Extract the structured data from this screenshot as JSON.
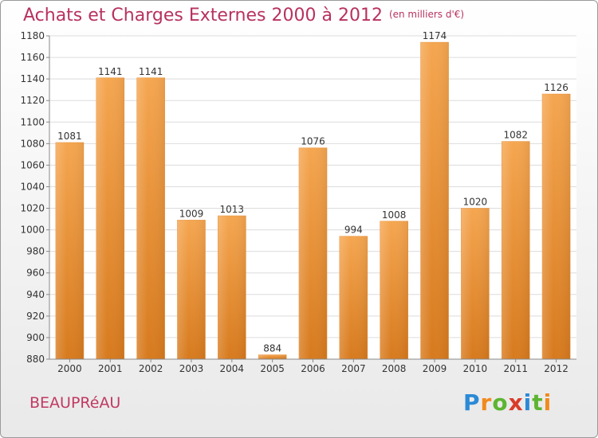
{
  "header": {
    "title": "Achats et Charges Externes 2000 à 2012",
    "unit": "(en milliers d'€)"
  },
  "footer": {
    "location": "BEAUPRéAU",
    "brand": "Proxiti"
  },
  "colors": {
    "bar_top": "#f5a650",
    "bar_bottom": "#d77a1e",
    "title": "#b8325e"
  },
  "chart_data": {
    "type": "bar",
    "title": "Achats et Charges Externes 2000 à 2012",
    "subtitle": "(en milliers d'€)",
    "categories": [
      "2000",
      "2001",
      "2002",
      "2003",
      "2004",
      "2005",
      "2006",
      "2007",
      "2008",
      "2009",
      "2010",
      "2011",
      "2012"
    ],
    "values": [
      1081,
      1141,
      1141,
      1009,
      1013,
      884,
      1076,
      994,
      1008,
      1174,
      1020,
      1082,
      1126
    ],
    "ylim": [
      880,
      1180
    ],
    "yticks": [
      880,
      900,
      920,
      940,
      960,
      980,
      1000,
      1020,
      1040,
      1060,
      1080,
      1100,
      1120,
      1140,
      1160,
      1180
    ],
    "grid": true
  }
}
